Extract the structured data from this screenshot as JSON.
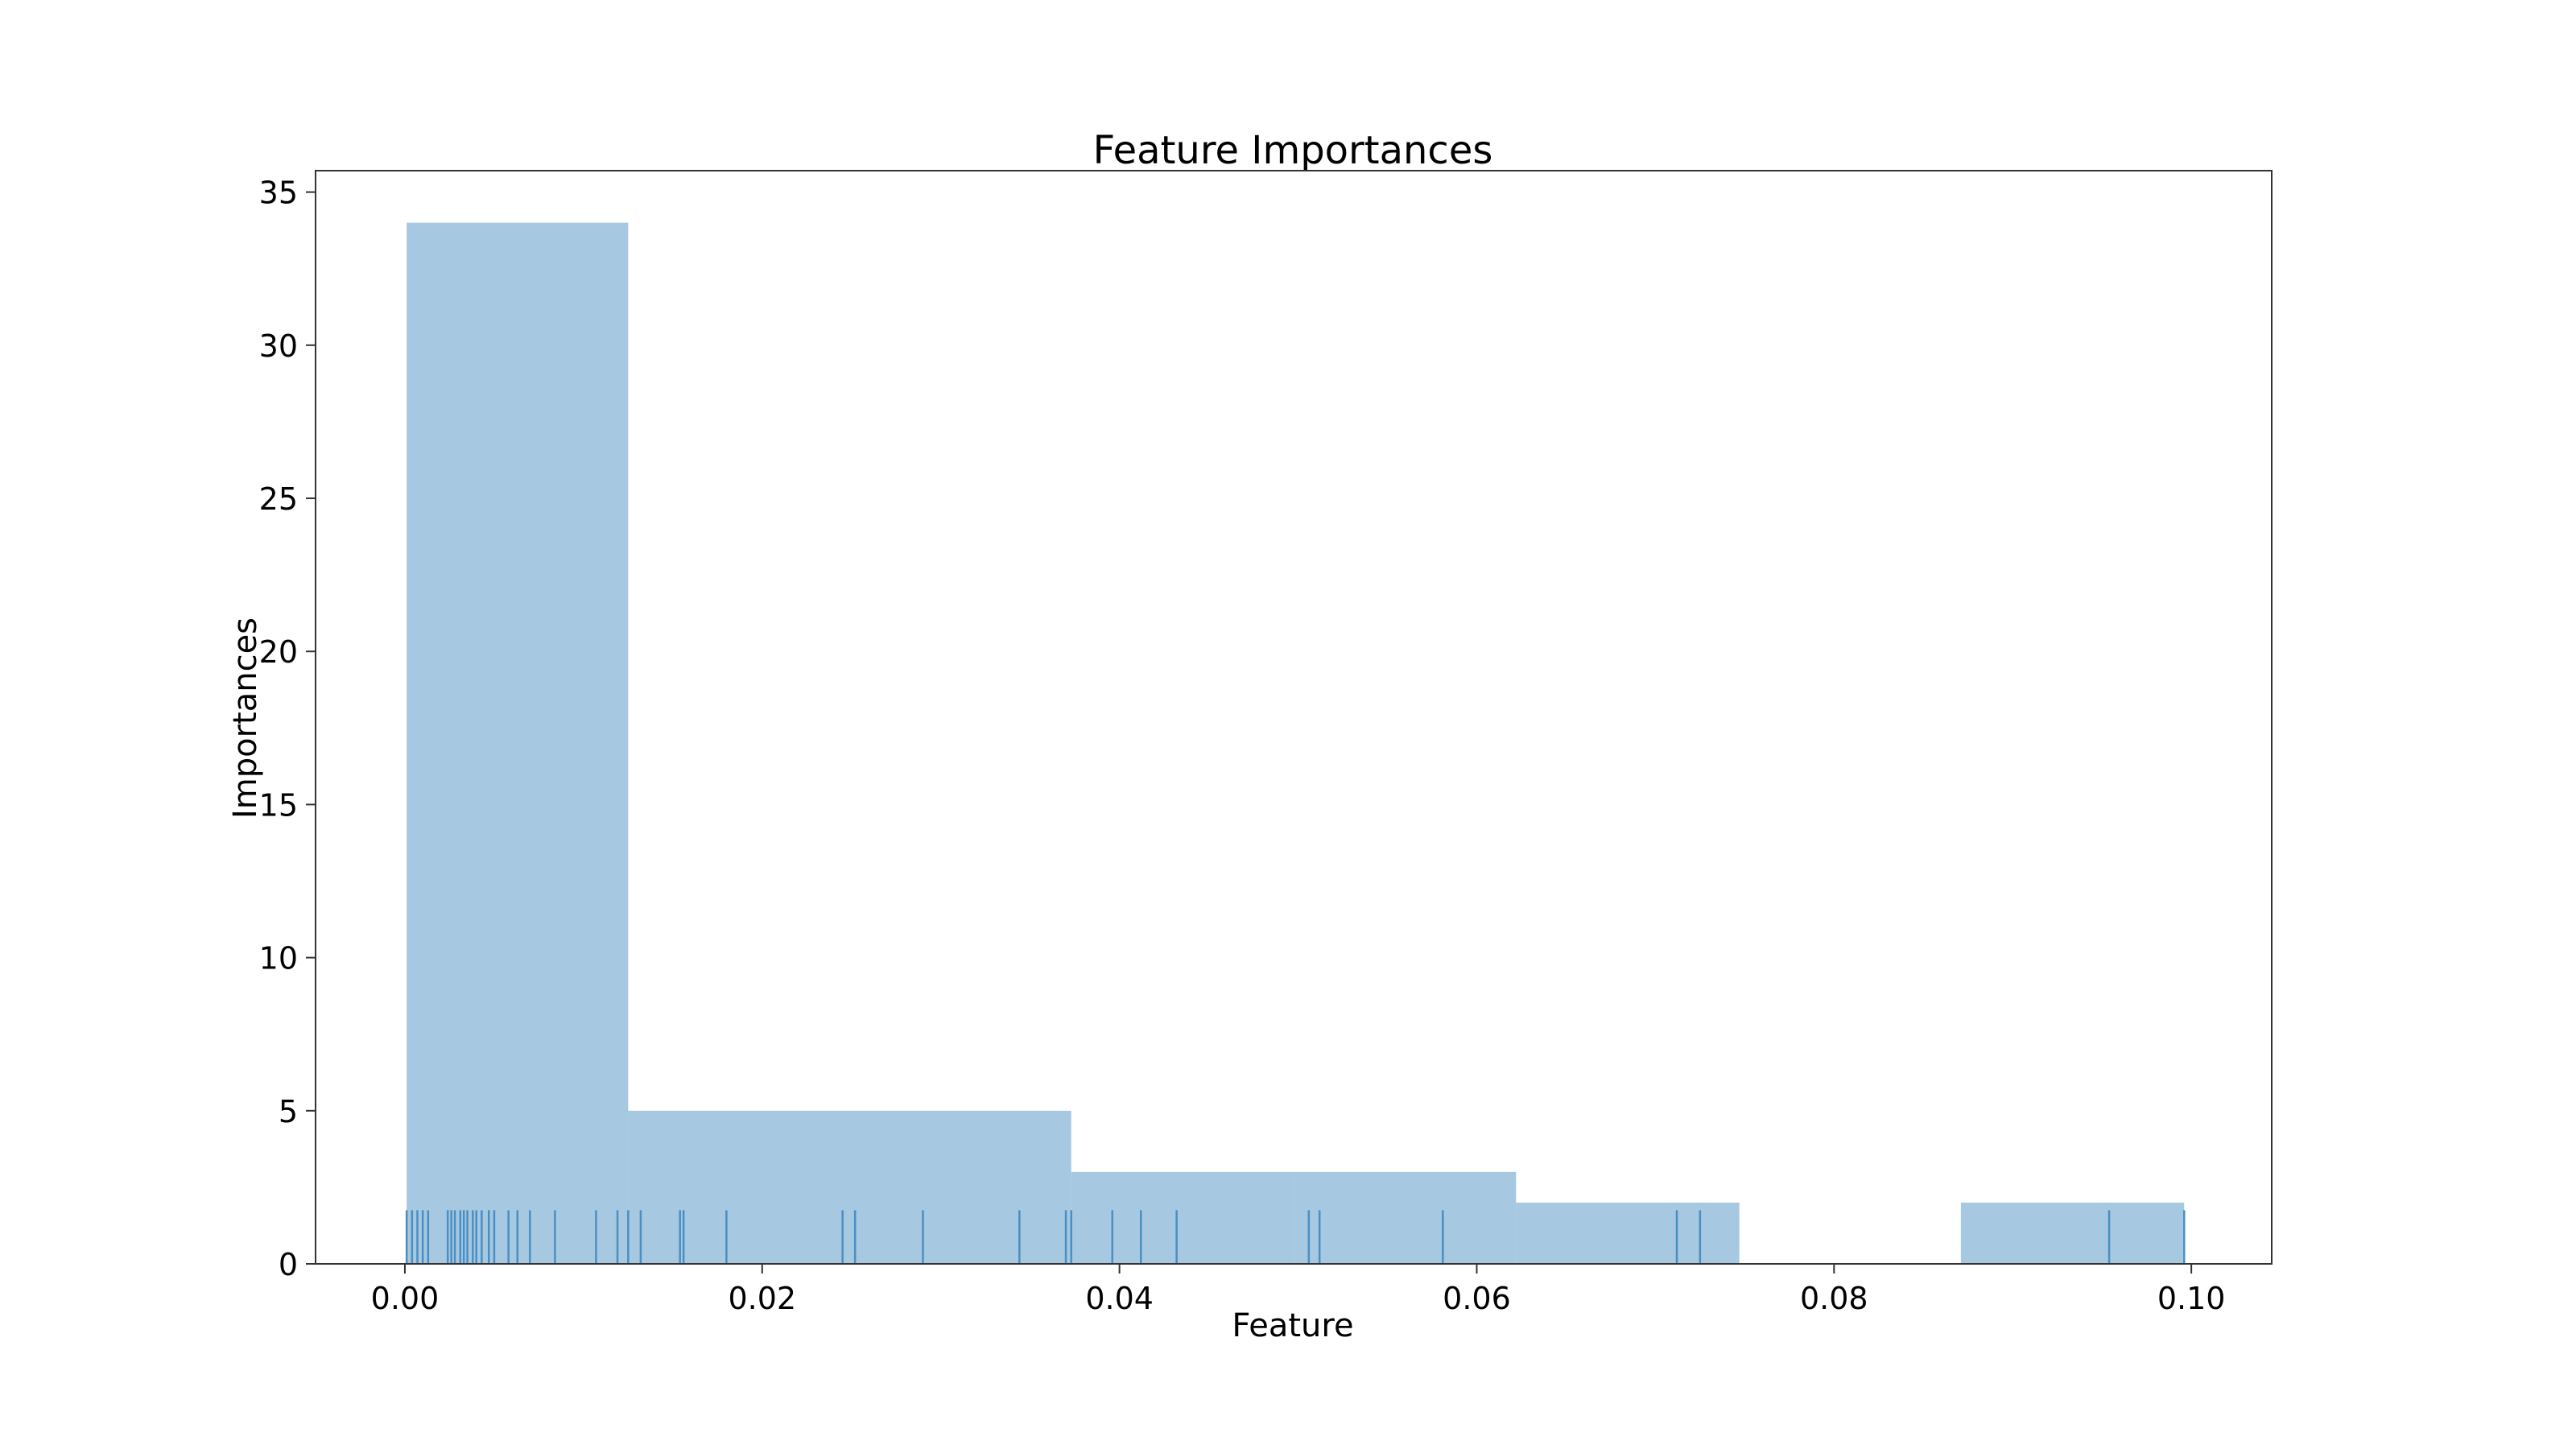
{
  "chart_data": {
    "type": "bar",
    "subtype": "histogram-with-rug",
    "title": "Feature Importances",
    "xlabel": "Feature",
    "ylabel": "Importances",
    "xlim": [
      -0.005,
      0.1045
    ],
    "ylim": [
      0,
      35.7
    ],
    "xticks": [
      0.0,
      0.02,
      0.04,
      0.06,
      0.08,
      0.1
    ],
    "xtick_labels": [
      "0.00",
      "0.02",
      "0.04",
      "0.06",
      "0.08",
      "0.10"
    ],
    "yticks": [
      0,
      5,
      10,
      15,
      20,
      25,
      30,
      35
    ],
    "ytick_labels": [
      "0",
      "5",
      "10",
      "15",
      "20",
      "25",
      "30",
      "35"
    ],
    "grid": false,
    "bins": [
      {
        "x0": 0.0001,
        "x1": 0.0125,
        "count": 34
      },
      {
        "x0": 0.0125,
        "x1": 0.0249,
        "count": 5
      },
      {
        "x0": 0.0249,
        "x1": 0.0373,
        "count": 5
      },
      {
        "x0": 0.0373,
        "x1": 0.0498,
        "count": 3
      },
      {
        "x0": 0.0498,
        "x1": 0.0622,
        "count": 3
      },
      {
        "x0": 0.0622,
        "x1": 0.0747,
        "count": 2
      },
      {
        "x0": 0.0747,
        "x1": 0.0871,
        "count": 0
      },
      {
        "x0": 0.0871,
        "x1": 0.0996,
        "count": 2
      }
    ],
    "rug": [
      0.0001,
      0.0004,
      0.0007,
      0.001,
      0.0013,
      0.0024,
      0.0026,
      0.0028,
      0.0031,
      0.0033,
      0.0035,
      0.0038,
      0.004,
      0.0043,
      0.0047,
      0.005,
      0.0058,
      0.0063,
      0.007,
      0.0084,
      0.0107,
      0.0119,
      0.0125,
      0.0132,
      0.0154,
      0.0156,
      0.018,
      0.0245,
      0.0252,
      0.029,
      0.0344,
      0.037,
      0.0373,
      0.0396,
      0.0412,
      0.0432,
      0.0506,
      0.0512,
      0.0581,
      0.0712,
      0.0725,
      0.0954,
      0.0996
    ],
    "colors": {
      "bar": "#a6c8e0",
      "rug": "#4a8fc4",
      "axis": "#333333"
    }
  }
}
